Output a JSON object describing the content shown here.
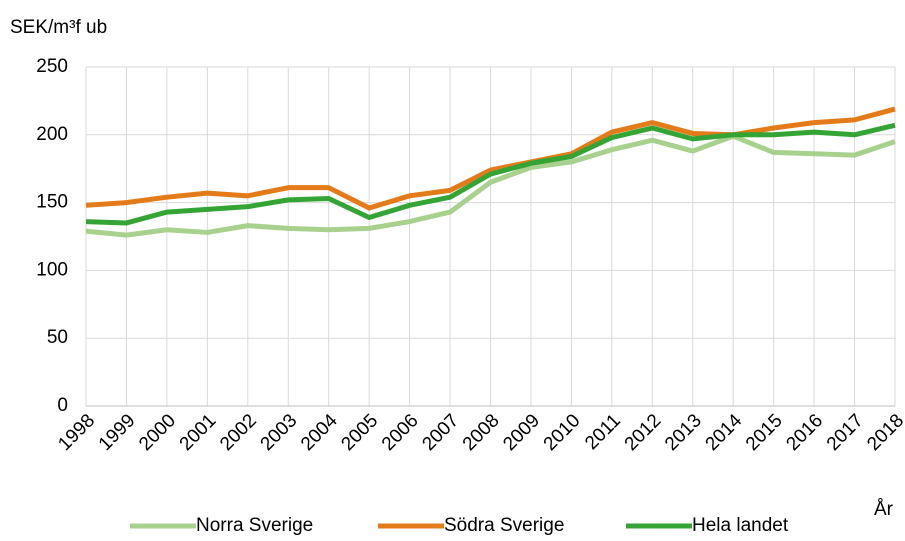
{
  "chart_data": {
    "type": "line",
    "y_label": "SEK/m³f ub",
    "x_label": "År",
    "categories": [
      "1998",
      "1999",
      "2000",
      "2001",
      "2002",
      "2003",
      "2004",
      "2005",
      "2006",
      "2007",
      "2008",
      "2009",
      "2010",
      "2011",
      "2012",
      "2013",
      "2014",
      "2015",
      "2016",
      "2017",
      "2018"
    ],
    "series": [
      {
        "name": "Norra Sverige",
        "color": "#a9d18e",
        "values": [
          129,
          126,
          130,
          128,
          133,
          131,
          130,
          131,
          136,
          143,
          165,
          176,
          180,
          189,
          196,
          188,
          199,
          187,
          186,
          185,
          195
        ]
      },
      {
        "name": "Södra Sverige",
        "color": "#e47b19",
        "values": [
          148,
          150,
          154,
          157,
          155,
          161,
          161,
          146,
          155,
          159,
          174,
          180,
          186,
          202,
          209,
          201,
          200,
          205,
          209,
          211,
          219
        ]
      },
      {
        "name": "Hela landet",
        "color": "#34a534",
        "values": [
          136,
          135,
          143,
          145,
          147,
          152,
          153,
          139,
          148,
          154,
          171,
          179,
          184,
          198,
          205,
          197,
          200,
          200,
          202,
          200,
          207
        ]
      }
    ],
    "ylim": [
      0,
      250
    ],
    "yticks": [
      0,
      50,
      100,
      150,
      200,
      250
    ],
    "grid": true,
    "legend": "bottom"
  }
}
